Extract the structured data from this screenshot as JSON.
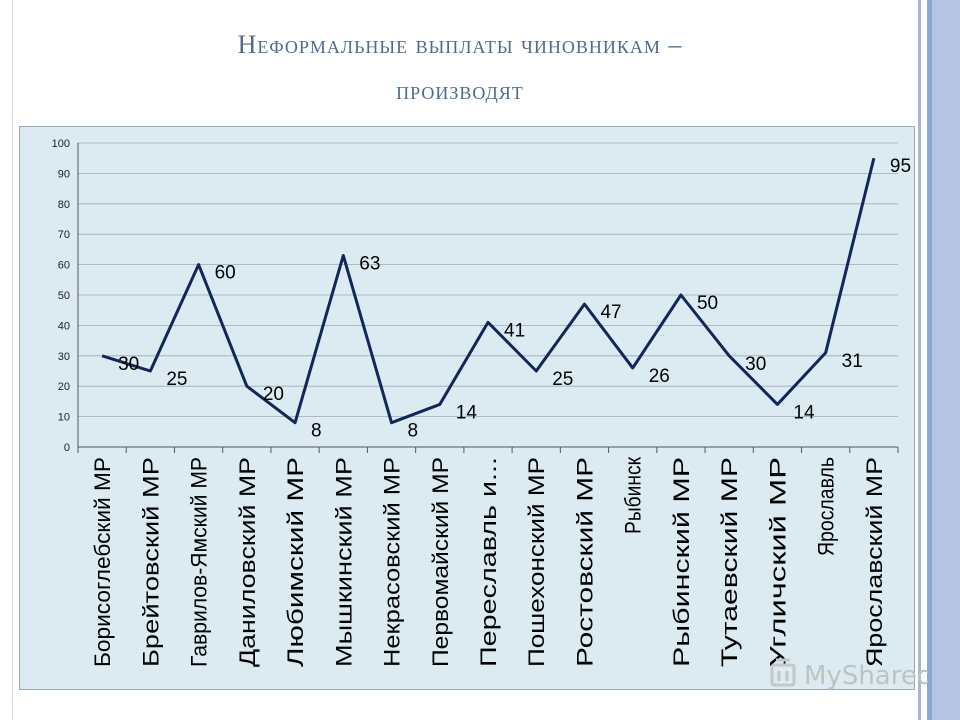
{
  "title_line1": "Неформальные выплаты чиновникам –",
  "title_line2": "производят",
  "watermark": {
    "text": "MyShared"
  },
  "colors": {
    "line": "#12265a",
    "chart_bg": "#dcebf2",
    "grid": "#a0aab5",
    "title": "#4f6a8f"
  },
  "chart_data": {
    "type": "line",
    "title": "",
    "xlabel": "",
    "ylabel": "",
    "ylim": [
      0,
      100
    ],
    "yticks": [
      0,
      10,
      20,
      30,
      40,
      50,
      60,
      70,
      80,
      90,
      100
    ],
    "grid": true,
    "legend": "none",
    "categories": [
      "Борисоглебский МР",
      "Брейтовский МР",
      "Гаврилов-Ямский МР",
      "Даниловский МР",
      "Любимский МР",
      "Мышкинский МР",
      "Некрасовский МР",
      "Первомайский МР",
      "Переславль и...",
      "Пошехонский МР",
      "Ростовский МР",
      "Рыбинск",
      "Рыбинский МР",
      "Тутаевский МР",
      "Угличский МР",
      "Ярославль",
      "Ярославский МР"
    ],
    "series": [
      {
        "values": [
          30,
          25,
          60,
          20,
          8,
          63,
          8,
          14,
          41,
          25,
          47,
          26,
          50,
          30,
          14,
          31,
          95
        ]
      }
    ]
  }
}
